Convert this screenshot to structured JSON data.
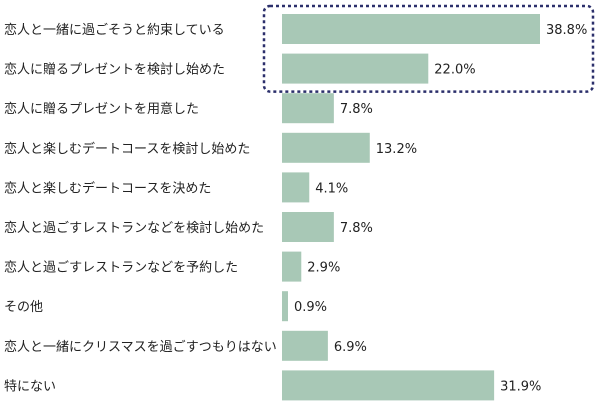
{
  "chart_data": {
    "type": "bar",
    "orientation": "horizontal",
    "categories": [
      "恋人と一緒に過ごそうと約束している",
      "恋人に贈るプレゼントを検討し始めた",
      "恋人に贈るプレゼントを用意した",
      "恋人と楽しむデートコースを検討し始めた",
      "恋人と楽しむデートコースを決めた",
      "恋人と過ごすレストランなどを検討し始めた",
      "恋人と過ごすレストランなどを予約した",
      "その他",
      "恋人と一緒にクリスマスを過ごすつもりはない",
      "特にない"
    ],
    "values": [
      38.8,
      22.0,
      7.8,
      13.2,
      4.1,
      7.8,
      2.9,
      0.9,
      6.9,
      31.9
    ],
    "value_labels": [
      "38.8%",
      "22.0%",
      "7.8%",
      "13.2%",
      "4.1%",
      "7.8%",
      "2.9%",
      "0.9%",
      "6.9%",
      "31.9%"
    ],
    "xlim": [
      0,
      38.8
    ],
    "grid": false,
    "highlighted_categories": [
      0,
      1
    ]
  },
  "colors": {
    "bar": "#a8c8b6",
    "highlight_border": "#2b2f6b",
    "text": "#222222"
  }
}
